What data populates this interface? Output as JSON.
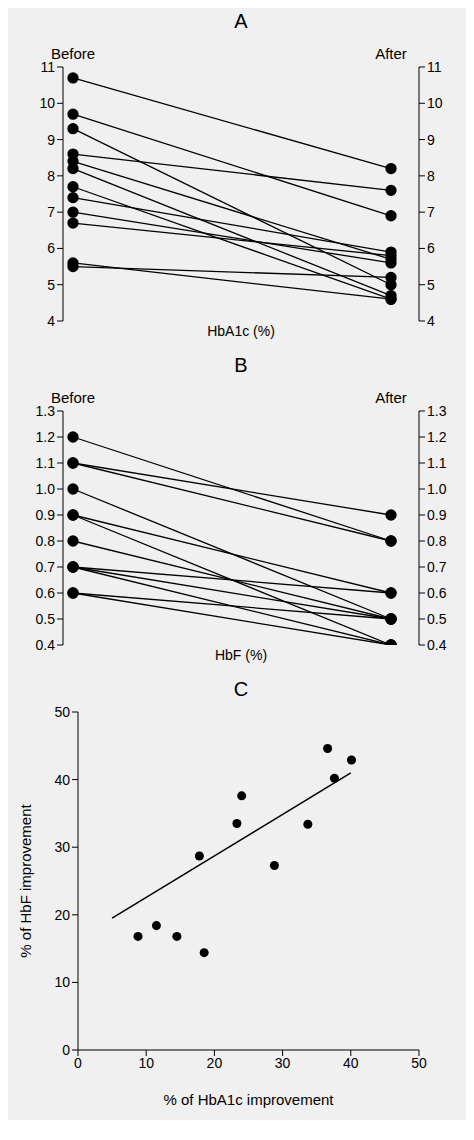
{
  "chart_data": [
    {
      "type": "line",
      "title": "A",
      "categories": [
        "Before",
        "After"
      ],
      "ylabel": "HbA1c (%)",
      "marker": "circle",
      "color": "#000000",
      "series": [
        {
          "values": [
            10.7,
            8.2
          ]
        },
        {
          "values": [
            9.7,
            6.9
          ]
        },
        {
          "values": [
            9.3,
            5.0
          ]
        },
        {
          "values": [
            8.6,
            7.6
          ]
        },
        {
          "values": [
            8.4,
            5.7
          ]
        },
        {
          "values": [
            8.2,
            4.7
          ]
        },
        {
          "values": [
            7.7,
            4.6
          ]
        },
        {
          "values": [
            7.4,
            5.9
          ]
        },
        {
          "values": [
            7.0,
            5.6
          ]
        },
        {
          "values": [
            6.7,
            5.8
          ]
        },
        {
          "values": [
            5.6,
            4.6
          ]
        },
        {
          "values": [
            5.5,
            5.2
          ]
        }
      ],
      "ylim": [
        4,
        11
      ],
      "yticks": [
        4,
        5,
        6,
        7,
        8,
        9,
        10,
        11
      ]
    },
    {
      "type": "line",
      "title": "B",
      "categories": [
        "Before",
        "After"
      ],
      "ylabel": "HbF (%)",
      "marker": "circle",
      "color": "#000000",
      "series": [
        {
          "values": [
            1.2,
            0.8
          ]
        },
        {
          "values": [
            1.1,
            0.9
          ]
        },
        {
          "values": [
            1.1,
            0.8
          ]
        },
        {
          "values": [
            1.0,
            0.5
          ]
        },
        {
          "values": [
            0.9,
            0.6
          ]
        },
        {
          "values": [
            0.8,
            0.5
          ]
        },
        {
          "values": [
            0.7,
            0.6
          ]
        },
        {
          "values": [
            0.7,
            0.5
          ]
        },
        {
          "values": [
            0.7,
            0.4
          ]
        },
        {
          "values": [
            0.6,
            0.5
          ]
        },
        {
          "values": [
            0.6,
            0.4
          ]
        },
        {
          "values": [
            0.9,
            0.4
          ]
        }
      ],
      "ylim": [
        0.4,
        1.3
      ],
      "yticks": [
        0.4,
        0.5,
        0.6,
        0.7,
        0.8,
        0.9,
        {
          "value": 1,
          "label": "1.0"
        },
        1.1,
        1.2,
        1.3
      ]
    },
    {
      "type": "scatter",
      "title": "C",
      "xlabel": "% of HbA1c improvement",
      "ylabel": "% of HbF improvement",
      "marker": "circle",
      "color": "#000000",
      "x": [
        8.8,
        11.5,
        14.5,
        17.8,
        18.5,
        23.3,
        24.0,
        28.8,
        33.7,
        36.6,
        37.6,
        40.1
      ],
      "values": [
        16.8,
        18.4,
        16.8,
        28.7,
        14.4,
        33.5,
        37.6,
        27.3,
        33.4,
        44.6,
        40.2,
        42.9
      ],
      "trend": {
        "x": [
          5,
          40
        ],
        "values": [
          19.5,
          41
        ]
      },
      "xlim": [
        0,
        50
      ],
      "xticks": [
        0,
        10,
        20,
        30,
        40,
        50
      ],
      "ylim": [
        0,
        50
      ],
      "yticks": [
        0,
        10,
        20,
        30,
        40,
        50
      ]
    }
  ]
}
